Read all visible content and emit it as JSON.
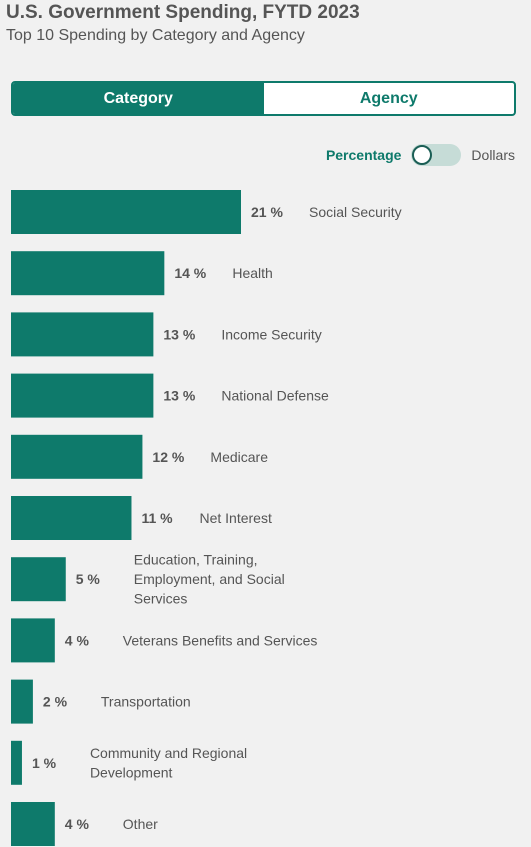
{
  "header": {
    "title": "U.S. Government Spending, FYTD 2023",
    "subtitle": "Top 10 Spending by Category and Agency"
  },
  "tabs": [
    {
      "label": "Category",
      "active": true
    },
    {
      "label": "Agency",
      "active": false
    }
  ],
  "toggle": {
    "left_label": "Percentage",
    "right_label": "Dollars",
    "selected": "Percentage"
  },
  "colors": {
    "accent": "#0e7a6b",
    "bar": "#0e7a6b",
    "background": "#f1f1f1",
    "text": "#555555"
  },
  "chart_data": {
    "type": "bar",
    "orientation": "horizontal",
    "unit": "%",
    "categories": [
      [
        "Social Security"
      ],
      [
        "Health"
      ],
      [
        "Income Security"
      ],
      [
        "National Defense"
      ],
      [
        "Medicare"
      ],
      [
        "Net Interest"
      ],
      [
        "Education, Training,",
        "Employment, and Social",
        "Services"
      ],
      [
        "Veterans Benefits and Services"
      ],
      [
        "Transportation"
      ],
      [
        "Community and Regional",
        "Development"
      ],
      [
        "Other"
      ]
    ],
    "values": [
      21,
      14,
      13,
      13,
      12,
      11,
      5,
      4,
      2,
      1,
      4
    ],
    "value_labels": [
      "21 %",
      "14 %",
      "13 %",
      "13 %",
      "12 %",
      "11 %",
      "5 %",
      "4 %",
      "2 %",
      "1 %",
      "4 %"
    ],
    "xlim": [
      0,
      21
    ],
    "grid": false,
    "legend": "none"
  }
}
